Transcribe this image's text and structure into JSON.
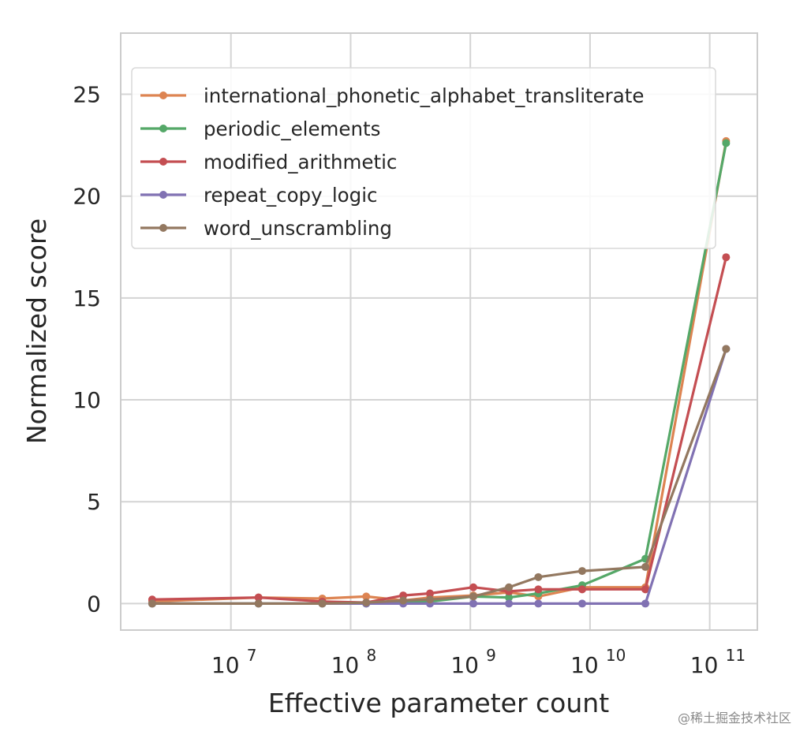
{
  "chart_data": {
    "type": "line",
    "xlabel": "Effective parameter count",
    "ylabel": "Normalized score",
    "xscale": "log",
    "xlim": [
      1200000.0,
      250000000000.0
    ],
    "ylim": [
      -1.3,
      28
    ],
    "grid": true,
    "legend_position": "top-left",
    "x_ticks": [
      {
        "value": 10000000.0,
        "base": "10",
        "exp": "7"
      },
      {
        "value": 100000000.0,
        "base": "10",
        "exp": "8"
      },
      {
        "value": 1000000000.0,
        "base": "10",
        "exp": "9"
      },
      {
        "value": 10000000000.0,
        "base": "10",
        "exp": "10"
      },
      {
        "value": 100000000000.0,
        "base": "10",
        "exp": "11"
      }
    ],
    "y_ticks": [
      {
        "value": 0,
        "label": "0"
      },
      {
        "value": 5,
        "label": "5"
      },
      {
        "value": 10,
        "label": "10"
      },
      {
        "value": 15,
        "label": "15"
      },
      {
        "value": 20,
        "label": "20"
      },
      {
        "value": 25,
        "label": "25"
      }
    ],
    "series": [
      {
        "name": "international_phonetic_alphabet_transliterate",
        "color": "#dd8452",
        "x": [
          2200000.0,
          17000000.0,
          58000000.0,
          135000000.0,
          275000000.0,
          460000000.0,
          1060000000.0,
          2100000000.0,
          3700000000.0,
          8600000000.0,
          29000000000.0,
          137000000000.0
        ],
        "y": [
          0.1,
          0.3,
          0.25,
          0.35,
          0.15,
          0.3,
          0.4,
          0.55,
          0.35,
          0.8,
          0.8,
          22.7
        ]
      },
      {
        "name": "periodic_elements",
        "color": "#55a868",
        "x": [
          2200000.0,
          17000000.0,
          58000000.0,
          135000000.0,
          275000000.0,
          460000000.0,
          1060000000.0,
          2100000000.0,
          3700000000.0,
          8600000000.0,
          29000000000.0,
          137000000000.0
        ],
        "y": [
          0.0,
          0.0,
          0.0,
          0.0,
          0.05,
          0.1,
          0.35,
          0.3,
          0.5,
          0.9,
          2.2,
          22.6
        ]
      },
      {
        "name": "modified_arithmetic",
        "color": "#c44e52",
        "x": [
          2200000.0,
          17000000.0,
          58000000.0,
          135000000.0,
          275000000.0,
          460000000.0,
          1060000000.0,
          2100000000.0,
          3700000000.0,
          8600000000.0,
          29000000000.0,
          137000000000.0
        ],
        "y": [
          0.2,
          0.3,
          0.1,
          0.05,
          0.4,
          0.5,
          0.8,
          0.6,
          0.7,
          0.7,
          0.7,
          17.0
        ]
      },
      {
        "name": "repeat_copy_logic",
        "color": "#8172b3",
        "x": [
          2200000.0,
          17000000.0,
          58000000.0,
          135000000.0,
          275000000.0,
          460000000.0,
          1060000000.0,
          2100000000.0,
          3700000000.0,
          8600000000.0,
          29000000000.0,
          137000000000.0
        ],
        "y": [
          0,
          0,
          0,
          0,
          0,
          0,
          0,
          0,
          0,
          0,
          0,
          12.5
        ]
      },
      {
        "name": "word_unscrambling",
        "color": "#937860",
        "x": [
          2200000.0,
          17000000.0,
          58000000.0,
          135000000.0,
          275000000.0,
          460000000.0,
          1060000000.0,
          2100000000.0,
          3700000000.0,
          8600000000.0,
          29000000000.0,
          137000000000.0
        ],
        "y": [
          0.0,
          0.0,
          0.0,
          0.05,
          0.15,
          0.2,
          0.35,
          0.8,
          1.3,
          1.6,
          1.8,
          12.5
        ]
      }
    ]
  },
  "watermark": "@稀土掘金技术社区"
}
